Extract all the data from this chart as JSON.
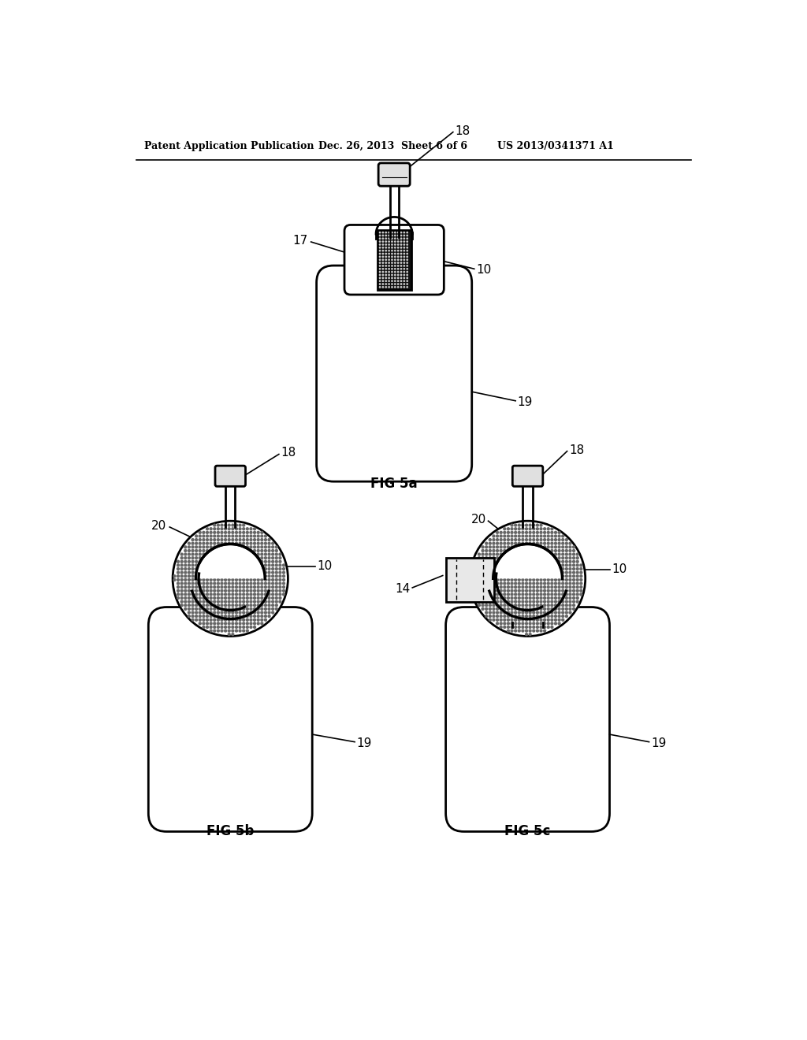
{
  "bg_color": "#ffffff",
  "header_left": "Patent Application Publication",
  "header_mid": "Dec. 26, 2013  Sheet 6 of 6",
  "header_right": "US 2013/0341371 A1",
  "fig5a_label": "FIG 5a",
  "fig5b_label": "FIG 5b",
  "fig5c_label": "FIG 5c",
  "line_color": "#000000",
  "fill_color": "#ffffff",
  "font_size_header": 9,
  "font_size_label": 12,
  "font_size_ref": 11,
  "lw_main": 2.0,
  "lw_thin": 1.2
}
